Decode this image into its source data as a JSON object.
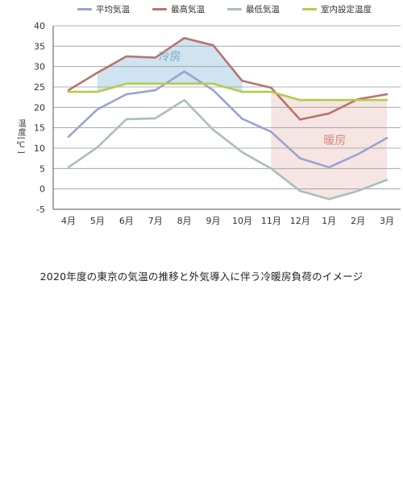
{
  "chart_data": {
    "type": "line",
    "title": "2020年度の東京の気温の推移と外気導入に伴う冷暖房負荷のイメージ",
    "ylabel": "温度[℃]",
    "xlabel": "",
    "ylim": [
      -5,
      40
    ],
    "yticks": [
      -5,
      0,
      5,
      10,
      15,
      20,
      25,
      30,
      35,
      40
    ],
    "categories": [
      "4月",
      "5月",
      "6月",
      "7月",
      "8月",
      "9月",
      "10月",
      "11月",
      "12月",
      "1月",
      "2月",
      "3月"
    ],
    "grid": true,
    "legend_position": "top",
    "series": [
      {
        "name": "平均気温",
        "color": "#99a3d1",
        "values": [
          12.8,
          19.5,
          23.2,
          24.2,
          28.8,
          24.2,
          17.2,
          14.0,
          7.5,
          5.3,
          8.5,
          12.5
        ]
      },
      {
        "name": "最高気温",
        "color": "#b5756b",
        "values": [
          24.2,
          28.5,
          32.5,
          32.2,
          37.0,
          35.2,
          26.5,
          24.8,
          17.0,
          18.5,
          22.0,
          23.2
        ]
      },
      {
        "name": "最低気温",
        "color": "#a9bfbb",
        "values": [
          5.3,
          10.2,
          17.1,
          17.3,
          21.8,
          14.5,
          9.0,
          5.0,
          -0.5,
          -2.5,
          -0.5,
          2.2
        ]
      },
      {
        "name": "室内設定温度",
        "color": "#b2cc4c",
        "values": [
          23.8,
          23.8,
          25.8,
          25.8,
          25.8,
          25.8,
          23.8,
          23.8,
          21.8,
          21.8,
          21.8,
          21.8
        ]
      }
    ],
    "regions": [
      {
        "label": "冷房",
        "color": "#cfe4f0",
        "label_color": "#7fa8c8",
        "from": "5月",
        "to": "10月",
        "lower": "室内設定温度",
        "upper": "最高気温"
      },
      {
        "label": "暖房",
        "color": "#f6e5e3",
        "label_color": "#d08a84",
        "from": "11月",
        "to": "3月",
        "lower": "最低気温",
        "upper": "室内設定温度"
      }
    ]
  }
}
